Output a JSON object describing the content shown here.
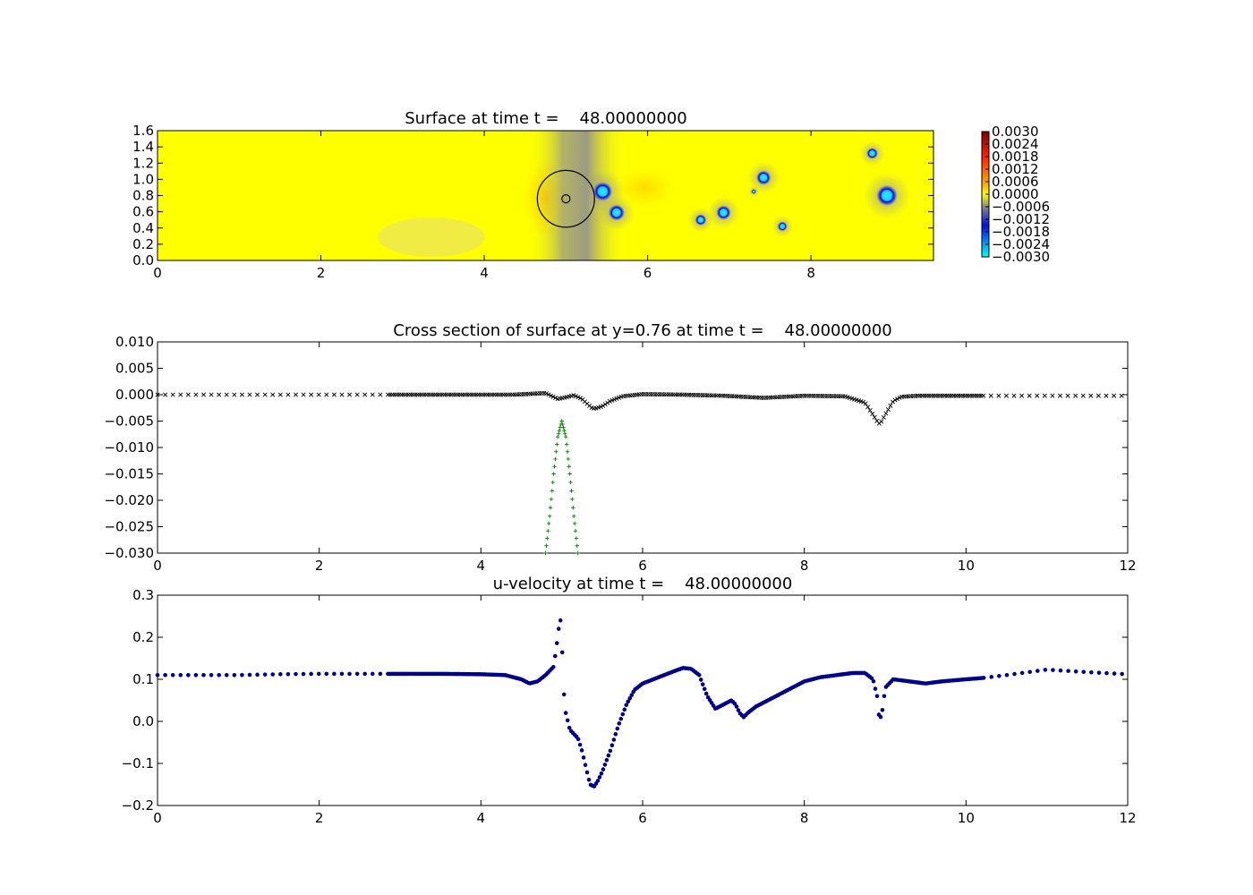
{
  "colors": {
    "positive_max": "#7a0000",
    "positive_mid": "#ff2000",
    "zero": "#ffff00",
    "neg_gray": "#888888",
    "neg_blue": "#0010e0",
    "neg_min": "#00ffff",
    "surface_marker": "#000000",
    "profile_marker": "#008000",
    "velocity_marker": "#00008b"
  },
  "chart_data": [
    {
      "type": "heatmap",
      "title": "Surface at time t =    48.00000000",
      "xlim": [
        0,
        9.5
      ],
      "ylim": [
        0,
        1.6
      ],
      "xticks": [
        "0",
        "2",
        "4",
        "6",
        "8"
      ],
      "yticks": [
        "0.0",
        "0.2",
        "0.4",
        "0.6",
        "0.8",
        "1.0",
        "1.2",
        "1.4",
        "1.6"
      ],
      "colorbar": {
        "range": [
          -0.003,
          0.003
        ],
        "ticks": [
          "0.0030",
          "0.0024",
          "0.0018",
          "0.0012",
          "0.0006",
          "0.0000",
          "−0.0006",
          "−0.0012",
          "−0.0018",
          "−0.0024",
          "−0.0030"
        ]
      },
      "body_circle": {
        "x": 5.0,
        "y": 0.76,
        "r": 0.35
      },
      "inner_circle": {
        "x": 5.0,
        "y": 0.76,
        "r": 0.05
      },
      "depressions": [
        {
          "x": 5.45,
          "y": 0.85,
          "r": 0.12,
          "depth": -0.003
        },
        {
          "x": 5.62,
          "y": 0.59,
          "r": 0.1,
          "depth": -0.003
        },
        {
          "x": 6.65,
          "y": 0.5,
          "r": 0.07,
          "depth": -0.0028
        },
        {
          "x": 6.93,
          "y": 0.59,
          "r": 0.09,
          "depth": -0.003
        },
        {
          "x": 7.42,
          "y": 1.02,
          "r": 0.09,
          "depth": -0.003
        },
        {
          "x": 7.65,
          "y": 0.42,
          "r": 0.06,
          "depth": -0.0026
        },
        {
          "x": 8.75,
          "y": 1.32,
          "r": 0.07,
          "depth": -0.0028
        },
        {
          "x": 8.93,
          "y": 0.8,
          "r": 0.13,
          "depth": -0.003
        },
        {
          "x": 7.3,
          "y": 0.85,
          "r": 0.03,
          "depth": -0.0016
        }
      ]
    },
    {
      "type": "scatter",
      "title": "Cross section of surface at y=0.76 at time t =    48.00000000",
      "xlim": [
        0,
        12
      ],
      "ylim": [
        -0.03,
        0.01
      ],
      "xticks": [
        "0",
        "2",
        "4",
        "6",
        "8",
        "10",
        "12"
      ],
      "yticks": [
        "0.010",
        "0.005",
        "0.000",
        "−0.005",
        "−0.010",
        "−0.015",
        "−0.020",
        "−0.025",
        "−0.030"
      ],
      "series": [
        {
          "marker": "x",
          "x": [
            0.0,
            0.4,
            0.8,
            1.2,
            1.6,
            2.0,
            2.4,
            2.8,
            3.2,
            3.6,
            4.0,
            4.4,
            4.8,
            4.95,
            5.05,
            5.15,
            5.25,
            5.32,
            5.38,
            5.42,
            5.5,
            5.6,
            5.75,
            6.0,
            6.5,
            7.0,
            7.5,
            8.0,
            8.5,
            8.75,
            8.85,
            8.92,
            8.95,
            9.0,
            9.1,
            9.2,
            9.4,
            9.8,
            10.2,
            10.6,
            11.0,
            11.4,
            11.8,
            12.0
          ],
          "y": [
            0.0,
            0.0,
            0.0,
            0.0,
            0.0,
            0.0,
            0.0,
            0.0,
            0.0,
            0.0,
            0.0,
            0.0,
            0.0003,
            -0.0008,
            -0.0005,
            -0.0001,
            -0.0008,
            -0.0018,
            -0.0026,
            -0.0026,
            -0.0022,
            -0.0012,
            -0.0003,
            0.0001,
            0.0,
            -0.0002,
            -0.0006,
            -0.0002,
            -0.0003,
            -0.0015,
            -0.0038,
            -0.0055,
            -0.0052,
            -0.0038,
            -0.0012,
            -0.0004,
            -0.0002,
            -0.0002,
            -0.0002,
            -0.0002,
            -0.0002,
            -0.0002,
            -0.0002,
            -0.0002
          ]
        },
        {
          "marker": "+",
          "x": [
            4.8,
            4.85,
            4.9,
            4.95,
            5.0,
            5.05,
            5.1,
            5.15,
            5.2
          ],
          "y": [
            -0.03,
            -0.023,
            -0.015,
            -0.008,
            -0.005,
            -0.008,
            -0.015,
            -0.023,
            -0.03
          ]
        }
      ]
    },
    {
      "type": "scatter",
      "title": "u-velocity at time t =    48.00000000",
      "xlim": [
        0,
        12
      ],
      "ylim": [
        -0.2,
        0.3
      ],
      "xticks": [
        "0",
        "2",
        "4",
        "6",
        "8",
        "10",
        "12"
      ],
      "yticks": [
        "0.3",
        "0.2",
        "0.1",
        "0.0",
        "−0.1",
        "−0.2"
      ],
      "series": [
        {
          "marker": "o",
          "x": [
            0.0,
            0.5,
            1.0,
            1.5,
            2.0,
            2.5,
            3.0,
            3.5,
            4.0,
            4.3,
            4.5,
            4.6,
            4.7,
            4.8,
            4.85,
            4.9,
            4.95,
            4.98,
            5.0,
            5.02,
            5.05,
            5.1,
            5.15,
            5.2,
            5.25,
            5.3,
            5.35,
            5.4,
            5.45,
            5.5,
            5.6,
            5.7,
            5.8,
            5.9,
            6.0,
            6.2,
            6.4,
            6.5,
            6.6,
            6.7,
            6.8,
            6.9,
            7.0,
            7.1,
            7.15,
            7.2,
            7.25,
            7.3,
            7.4,
            7.6,
            7.8,
            8.0,
            8.2,
            8.4,
            8.6,
            8.75,
            8.85,
            8.9,
            8.93,
            8.97,
            9.0,
            9.1,
            9.3,
            9.5,
            9.7,
            10.0,
            10.2,
            10.5,
            11.0,
            11.5,
            12.0
          ],
          "y": [
            0.11,
            0.11,
            0.11,
            0.112,
            0.113,
            0.113,
            0.113,
            0.113,
            0.112,
            0.11,
            0.1,
            0.09,
            0.095,
            0.11,
            0.12,
            0.13,
            0.2,
            0.25,
            0.2,
            0.08,
            0.02,
            -0.02,
            -0.03,
            -0.04,
            -0.07,
            -0.11,
            -0.15,
            -0.155,
            -0.14,
            -0.12,
            -0.07,
            -0.01,
            0.04,
            0.075,
            0.09,
            0.105,
            0.12,
            0.127,
            0.125,
            0.11,
            0.06,
            0.03,
            0.04,
            0.05,
            0.04,
            0.02,
            0.01,
            0.02,
            0.035,
            0.055,
            0.075,
            0.095,
            0.105,
            0.11,
            0.115,
            0.115,
            0.1,
            0.06,
            0.0,
            0.03,
            0.08,
            0.1,
            0.095,
            0.09,
            0.095,
            0.1,
            0.103,
            0.11,
            0.123,
            0.117,
            0.112
          ]
        }
      ]
    }
  ]
}
